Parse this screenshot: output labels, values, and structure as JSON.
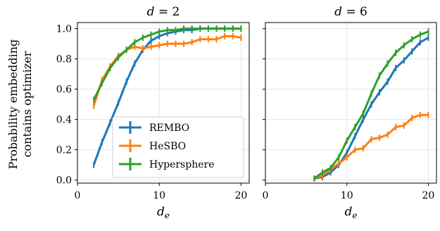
{
  "chart_data": [
    {
      "type": "line",
      "title": "d = 2",
      "xlabel": "d_e",
      "ylabel": [
        "Probability embedding",
        "contains optimizer"
      ],
      "xlim": [
        0,
        21
      ],
      "ylim": [
        -0.02,
        1.04
      ],
      "xticks": [
        "0",
        "10",
        "20"
      ],
      "yticks": [
        "0.0",
        "0.2",
        "0.4",
        "0.6",
        "0.8",
        "1.0"
      ],
      "grid": true,
      "legend": "lower-right",
      "x": [
        2,
        3,
        4,
        5,
        6,
        7,
        8,
        9,
        10,
        11,
        12,
        13,
        14,
        15,
        16,
        17,
        18,
        19,
        20
      ],
      "series": [
        {
          "name": "REMBO",
          "color": "#1f77b4",
          "values": [
            0.1,
            0.25,
            0.38,
            0.51,
            0.65,
            0.77,
            0.86,
            0.92,
            0.95,
            0.97,
            0.98,
            0.99,
            0.99,
            1.0,
            1.0,
            1.0,
            1.0,
            1.0,
            1.0
          ]
        },
        {
          "name": "HeSBO",
          "color": "#ff7f0e",
          "values": [
            0.49,
            0.66,
            0.75,
            0.82,
            0.86,
            0.88,
            0.87,
            0.88,
            0.89,
            0.9,
            0.9,
            0.9,
            0.91,
            0.93,
            0.93,
            0.93,
            0.95,
            0.95,
            0.94
          ]
        },
        {
          "name": "Hypersphere",
          "color": "#2ca02c",
          "values": [
            0.53,
            0.64,
            0.74,
            0.81,
            0.86,
            0.91,
            0.94,
            0.96,
            0.98,
            0.99,
            0.99,
            1.0,
            1.0,
            1.0,
            1.0,
            1.0,
            1.0,
            1.0,
            1.0
          ]
        }
      ]
    },
    {
      "type": "line",
      "title": "d = 6",
      "xlabel": "d_e",
      "xlim": [
        0,
        21
      ],
      "ylim": [
        -0.02,
        1.04
      ],
      "xticks": [
        "0",
        "10",
        "20"
      ],
      "grid": true,
      "x": [
        6,
        7,
        8,
        9,
        10,
        11,
        12,
        13,
        14,
        15,
        16,
        17,
        18,
        19,
        20
      ],
      "series": [
        {
          "name": "REMBO",
          "color": "#1f77b4",
          "values": [
            0.01,
            0.02,
            0.05,
            0.1,
            0.18,
            0.29,
            0.4,
            0.5,
            0.58,
            0.65,
            0.74,
            0.79,
            0.85,
            0.91,
            0.94
          ]
        },
        {
          "name": "HeSBO",
          "color": "#ff7f0e",
          "values": [
            0.01,
            0.03,
            0.07,
            0.11,
            0.15,
            0.2,
            0.21,
            0.27,
            0.28,
            0.3,
            0.35,
            0.36,
            0.41,
            0.43,
            0.43
          ]
        },
        {
          "name": "Hypersphere",
          "color": "#2ca02c",
          "values": [
            0.01,
            0.05,
            0.08,
            0.15,
            0.26,
            0.35,
            0.44,
            0.57,
            0.69,
            0.77,
            0.84,
            0.89,
            0.93,
            0.96,
            0.98
          ]
        }
      ]
    }
  ]
}
